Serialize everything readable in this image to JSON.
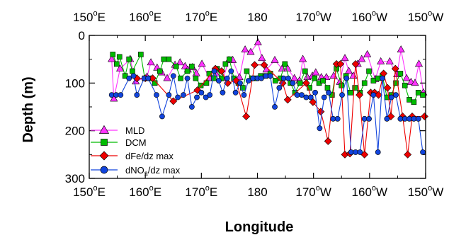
{
  "chart_data": {
    "type": "line",
    "xlabel": "Longitude",
    "ylabel": "Depth (m)",
    "xlim": [
      150,
      210
    ],
    "ylim": [
      300,
      0
    ],
    "y_reversed": true,
    "x_ticks": [
      {
        "value": 150,
        "deg": "150",
        "hem": "E"
      },
      {
        "value": 160,
        "deg": "160",
        "hem": "E"
      },
      {
        "value": 170,
        "deg": "170",
        "hem": "E"
      },
      {
        "value": 180,
        "deg": "180",
        "hem": ""
      },
      {
        "value": 190,
        "deg": "170",
        "hem": "W"
      },
      {
        "value": 200,
        "deg": "160",
        "hem": "W"
      },
      {
        "value": 210,
        "deg": "150",
        "hem": "W"
      }
    ],
    "y_ticks": [
      0,
      100,
      200,
      300
    ],
    "grid": false,
    "legend_position": "bottom-left",
    "series": [
      {
        "name": "MLD",
        "color": "#ff33ff",
        "marker": "triangle",
        "x": [
          154.0,
          154.4,
          155.5,
          157.3,
          158.3,
          160.3,
          161.0,
          162.1,
          162.9,
          163.9,
          165.3,
          166.2,
          167.1,
          167.6,
          168.4,
          169.1,
          170.1,
          171.5,
          172.6,
          173.9,
          174.9,
          175.6,
          176.8,
          177.8,
          178.8,
          180.1,
          180.8,
          181.6,
          183.1,
          184.4,
          185.4,
          186.6,
          187.5,
          188.1,
          188.9,
          189.8,
          190.4,
          191.4,
          192.3,
          193.6,
          194.7,
          195.6,
          196.3,
          197.1,
          197.9,
          198.6,
          199.6,
          201.0,
          202.0,
          203.6,
          204.9,
          205.6,
          206.6,
          207.4,
          208.1,
          208.8,
          209.6
        ],
        "y": [
          50,
          133,
          70,
          50,
          97,
          87,
          57,
          68,
          78,
          90,
          62,
          57,
          65,
          72,
          67,
          80,
          60,
          90,
          80,
          90,
          52,
          52,
          88,
          30,
          35,
          15,
          48,
          72,
          52,
          70,
          70,
          90,
          95,
          50,
          88,
          85,
          78,
          88,
          88,
          85,
          98,
          48,
          75,
          85,
          60,
          50,
          40,
          92,
          55,
          55,
          82,
          30,
          90,
          98,
          100,
          60,
          120
        ]
      },
      {
        "name": "DCM",
        "color": "#00bb00",
        "marker": "square",
        "x": [
          154.2,
          154.9,
          155.4,
          156.4,
          157.1,
          157.7,
          159.2,
          159.9,
          161.0,
          161.7,
          162.6,
          163.3,
          164.2,
          165.5,
          166.3,
          167.5,
          168.3,
          169.0,
          169.9,
          170.9,
          171.4,
          172.2,
          172.8,
          173.6,
          174.3,
          175.0,
          175.8,
          176.6,
          177.4,
          178.1,
          179.0,
          179.8,
          180.6,
          181.4,
          182.3,
          183.2,
          184.1,
          184.9,
          185.9,
          186.7,
          187.6,
          188.5,
          189.3,
          190.2,
          191.0,
          191.7,
          192.5,
          193.3,
          194.1,
          195.0,
          195.8,
          196.6,
          197.4,
          198.3,
          199.1,
          199.9,
          200.7,
          201.5,
          202.3,
          203.1,
          203.9,
          204.7,
          205.5,
          206.3,
          207.1,
          207.9,
          208.7,
          209.5
        ],
        "y": [
          40,
          60,
          45,
          85,
          50,
          75,
          40,
          90,
          90,
          100,
          75,
          50,
          50,
          65,
          90,
          75,
          65,
          90,
          105,
          100,
          80,
          90,
          70,
          90,
          60,
          50,
          90,
          100,
          110,
          75,
          90,
          90,
          85,
          85,
          80,
          95,
          90,
          60,
          100,
          120,
          100,
          75,
          110,
          90,
          100,
          95,
          110,
          125,
          70,
          105,
          85,
          120,
          110,
          120,
          100,
          75,
          95,
          90,
          85,
          130,
          125,
          100,
          80,
          105,
          135,
          140,
          120,
          125
        ]
      },
      {
        "name": "dFe/dz max",
        "color": "#ee0000",
        "marker": "diamond",
        "x": [
          158.5,
          160.0,
          161.3,
          165.0,
          169.3,
          172.5,
          173.6,
          174.7,
          176.2,
          178.0,
          179.5,
          181.2,
          184.5,
          185.4,
          188.7,
          189.9,
          191.3,
          192.6,
          194.1,
          194.8,
          195.6,
          196.5,
          197.5,
          198.2,
          199.1,
          200.2,
          200.9,
          201.6,
          202.5,
          203.2,
          203.8,
          204.6,
          205.9,
          206.8,
          207.6,
          209.8
        ],
        "y": [
          90,
          90,
          90,
          138,
          115,
          70,
          75,
          100,
          95,
          170,
          62,
          62,
          100,
          135,
          100,
          140,
          160,
          222,
          60,
          60,
          250,
          248,
          60,
          125,
          250,
          120,
          120,
          125,
          80,
          110,
          170,
          70,
          170,
          250,
          170,
          170
        ]
      },
      {
        "name": "dNO₃/dz max",
        "color": "#1144dd",
        "marker": "circle",
        "x": [
          154.0,
          154.8,
          155.6,
          157.1,
          157.9,
          158.5,
          159.8,
          160.5,
          162.0,
          163.0,
          164.2,
          165.0,
          165.8,
          166.8,
          167.5,
          168.3,
          169.2,
          170.0,
          170.8,
          171.5,
          172.3,
          173.1,
          173.8,
          174.6,
          175.3,
          176.1,
          176.9,
          177.6,
          178.4,
          179.2,
          180.0,
          180.7,
          181.5,
          182.3,
          183.1,
          183.9,
          184.7,
          185.5,
          186.3,
          187.1,
          187.9,
          188.7,
          189.5,
          190.3,
          191.1,
          191.9,
          192.7,
          193.5,
          194.3,
          195.1,
          195.9,
          196.7,
          197.5,
          198.3,
          199.1,
          199.9,
          200.7,
          201.5,
          202.3,
          203.1,
          203.9,
          204.7,
          205.5,
          206.3,
          207.1,
          207.9,
          208.7,
          209.5
        ],
        "y": [
          125,
          125,
          125,
          90,
          85,
          125,
          90,
          90,
          125,
          170,
          125,
          85,
          130,
          125,
          90,
          150,
          130,
          120,
          130,
          125,
          75,
          95,
          120,
          90,
          75,
          120,
          100,
          125,
          95,
          90,
          90,
          90,
          85,
          85,
          150,
          110,
          90,
          90,
          100,
          125,
          125,
          130,
          130,
          120,
          195,
          130,
          120,
          175,
          175,
          125,
          90,
          245,
          245,
          245,
          175,
          175,
          125,
          245,
          90,
          175,
          130,
          125,
          175,
          175,
          175,
          175,
          175,
          245
        ]
      }
    ]
  },
  "legend": {
    "items": [
      {
        "label": "MLD"
      },
      {
        "label": "DCM"
      },
      {
        "label": "dFe/dz max"
      },
      {
        "label_main": "dNO",
        "label_sub": "3",
        "label_tail": "/dz max"
      }
    ]
  },
  "colors": {
    "axis": "#000000",
    "mld": "#ff33ff",
    "dcm": "#00bb00",
    "dfe": "#ee0000",
    "dno3": "#1144dd"
  }
}
